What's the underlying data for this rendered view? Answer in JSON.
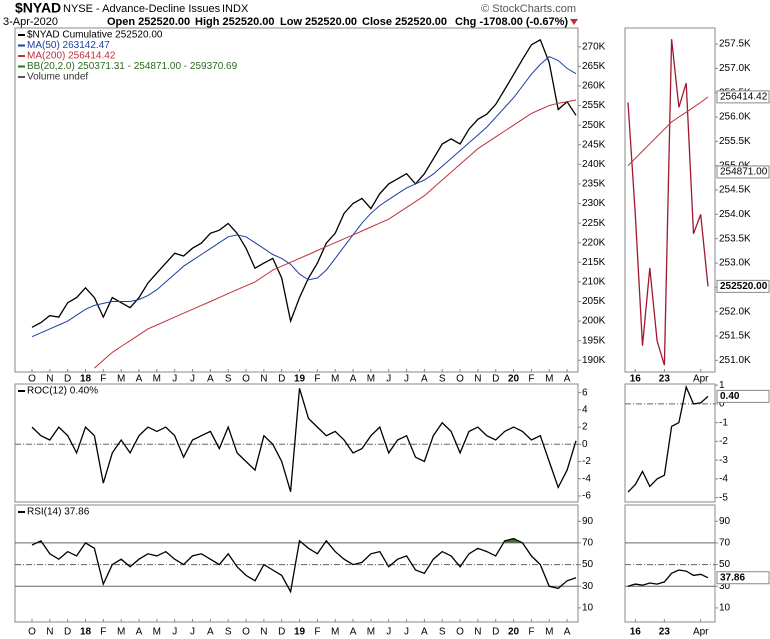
{
  "header": {
    "symbol": "$NYAD",
    "name": "NYSE - Advance-Decline Issues",
    "exchange": "INDX",
    "credit": "© StockCharts.com",
    "date": "3-Apr-2020",
    "open": "Open 252520.00",
    "high": "High 252520.00",
    "low": "Low 252520.00",
    "close": "Close 252520.00",
    "change": "Chg -1708.00 (-0.67%)"
  },
  "chart_data": [
    {
      "type": "line",
      "legend": "top-left",
      "legend_extra": [
        "BB(20,2.0) 250371.31 - 254871.00 - 259370.69",
        "Volume undef"
      ],
      "categories": [
        "O",
        null,
        "N",
        null,
        "D",
        null,
        "18",
        null,
        "F",
        null,
        "M",
        null,
        "A",
        null,
        "M",
        null,
        "J",
        null,
        "J",
        null,
        "A",
        null,
        "S",
        null,
        "O",
        null,
        "N",
        null,
        "D",
        null,
        "19",
        null,
        "F",
        null,
        "M",
        null,
        "A",
        null,
        "M",
        null,
        "J",
        null,
        "J",
        null,
        "A",
        null,
        "S",
        null,
        "O",
        null,
        "N",
        null,
        "D",
        null,
        "20",
        null,
        "F",
        null,
        "M",
        null,
        "A",
        null
      ],
      "ylim": [
        187000,
        274800
      ],
      "yticks": [
        {
          "value": 190000,
          "label": "190K"
        },
        {
          "value": 195000,
          "label": "195K"
        },
        {
          "value": 200000,
          "label": "200K"
        },
        {
          "value": 205000,
          "label": "205K"
        },
        {
          "value": 210000,
          "label": "210K"
        },
        {
          "value": 215000,
          "label": "215K"
        },
        {
          "value": 220000,
          "label": "220K"
        },
        {
          "value": 225000,
          "label": "225K"
        },
        {
          "value": 230000,
          "label": "230K"
        },
        {
          "value": 235000,
          "label": "235K"
        },
        {
          "value": 240000,
          "label": "240K"
        },
        {
          "value": 245000,
          "label": "245K"
        },
        {
          "value": 250000,
          "label": "250K"
        },
        {
          "value": 255000,
          "label": "255K"
        },
        {
          "value": 260000,
          "label": "260K"
        },
        {
          "value": 265000,
          "label": "265K"
        },
        {
          "value": 270000,
          "label": "270K"
        }
      ],
      "series": [
        {
          "name": "$NYAD Cumulative 252520.00",
          "color": "#000000",
          "values": [
            198400,
            199600,
            201400,
            201000,
            204700,
            206000,
            208500,
            206000,
            201000,
            206000,
            204700,
            203400,
            206000,
            209700,
            212300,
            214800,
            217300,
            216600,
            218600,
            219900,
            222400,
            223200,
            224900,
            222400,
            218600,
            213500,
            214800,
            216000,
            211000,
            200000,
            206000,
            211000,
            214800,
            219900,
            222400,
            227500,
            230000,
            231300,
            228700,
            232500,
            235000,
            236300,
            237600,
            235000,
            237600,
            241400,
            245200,
            246500,
            245200,
            249000,
            251500,
            252800,
            255300,
            259100,
            262900,
            266800,
            270500,
            271800,
            266000,
            254000,
            256000,
            252520
          ]
        },
        {
          "name": "MA(50) 263142.47",
          "color": "#1f3f9f",
          "values": [
            196000,
            197000,
            198000,
            199000,
            200000,
            201500,
            203000,
            204000,
            204500,
            205000,
            205000,
            205000,
            205500,
            206500,
            208000,
            210000,
            212000,
            214000,
            215500,
            217000,
            218500,
            220000,
            221500,
            222000,
            221500,
            220000,
            218500,
            217000,
            216000,
            214500,
            212000,
            210500,
            211000,
            213000,
            216000,
            219000,
            222000,
            225000,
            227500,
            229500,
            231000,
            232500,
            234000,
            235000,
            236000,
            237500,
            239500,
            241500,
            243500,
            245500,
            247500,
            249500,
            252000,
            254500,
            257000,
            260000,
            263000,
            265500,
            267500,
            266500,
            264500,
            263142.47
          ]
        },
        {
          "name": "MA(200) 256414.42",
          "color": "#c0303a",
          "values": [
            null,
            null,
            null,
            null,
            null,
            null,
            null,
            188000,
            190000,
            192000,
            193500,
            195000,
            196500,
            198000,
            199000,
            200000,
            201000,
            202000,
            203000,
            204000,
            205000,
            206000,
            207000,
            208000,
            209000,
            210000,
            211500,
            213000,
            214000,
            215000,
            216000,
            217000,
            218000,
            219000,
            220000,
            221000,
            222000,
            223000,
            224000,
            225000,
            226000,
            227500,
            229000,
            230500,
            232000,
            234000,
            236000,
            238000,
            240000,
            242000,
            244000,
            245500,
            247000,
            248500,
            250000,
            251500,
            253000,
            254000,
            255000,
            255600,
            256000,
            256414.42
          ]
        }
      ]
    },
    {
      "type": "line",
      "legend": "top-left",
      "ylim": [
        -6.7,
        7
      ],
      "yticks": [
        -6,
        -4,
        -2,
        0,
        2,
        4,
        6
      ],
      "levels": [
        0
      ],
      "level_styles": [
        "dashdot"
      ],
      "series": [
        {
          "name": "ROC(12) 0.40%",
          "color": "#000000",
          "values": [
            2,
            1,
            0.5,
            2,
            1,
            -1,
            2,
            1,
            -4.5,
            -1,
            0.5,
            -1,
            1,
            2,
            1.5,
            2,
            1,
            -1.5,
            0.5,
            1,
            1.5,
            -0.5,
            2,
            -1,
            -2,
            -3,
            1,
            0,
            -2,
            -5.5,
            6.5,
            3,
            2,
            1,
            1.5,
            0.5,
            -1,
            -0.5,
            1,
            2,
            -1,
            0.5,
            1,
            -1.5,
            -2,
            1,
            2.5,
            1.5,
            -1,
            1.5,
            2,
            1,
            0.5,
            1.5,
            2,
            1.5,
            0.5,
            1,
            -2,
            -5,
            -3,
            0.4
          ]
        }
      ]
    },
    {
      "type": "line",
      "legend": "top-left",
      "fill_above_level": true,
      "fill_color": "#4f6b45",
      "categories": [
        "O",
        null,
        "N",
        null,
        "D",
        null,
        "18",
        null,
        "F",
        null,
        "M",
        null,
        "A",
        null,
        "M",
        null,
        "J",
        null,
        "J",
        null,
        "A",
        null,
        "S",
        null,
        "O",
        null,
        "N",
        null,
        "D",
        null,
        "19",
        null,
        "F",
        null,
        "M",
        null,
        "A",
        null,
        "M",
        null,
        "J",
        null,
        "J",
        null,
        "A",
        null,
        "S",
        null,
        "O",
        null,
        "N",
        null,
        "D",
        null,
        "20",
        null,
        "F",
        null,
        "M",
        null,
        "A",
        null
      ],
      "ylim": [
        -3,
        105
      ],
      "yticks": [
        10,
        30,
        50,
        70,
        90
      ],
      "levels": [
        70,
        50,
        30
      ],
      "level_styles": [
        "solid",
        "dashdot",
        "solid"
      ],
      "series": [
        {
          "name": "RSI(14) 37.86",
          "color": "#000000",
          "values": [
            68,
            72,
            60,
            55,
            62,
            58,
            70,
            65,
            32,
            50,
            55,
            48,
            55,
            60,
            58,
            62,
            55,
            50,
            58,
            60,
            55,
            50,
            60,
            48,
            40,
            35,
            50,
            45,
            40,
            25,
            72,
            65,
            60,
            72,
            62,
            55,
            50,
            52,
            60,
            62,
            48,
            55,
            58,
            45,
            42,
            55,
            62,
            58,
            48,
            60,
            65,
            62,
            58,
            72,
            74,
            70,
            58,
            50,
            30,
            28,
            35,
            37.86
          ]
        }
      ]
    },
    {
      "type": "line",
      "categories": [
        null,
        "16",
        null,
        null,
        null,
        "23",
        null,
        null,
        null,
        null,
        "Apr",
        null
      ],
      "ylim": [
        250760,
        257830
      ],
      "yticks": [
        {
          "value": 251000,
          "label": "251.0K"
        },
        {
          "value": 251500,
          "label": "251.5K"
        },
        {
          "value": 252000,
          "label": "252.0K"
        },
        {
          "value": 252500,
          "label": "252.5K"
        },
        {
          "value": 253000,
          "label": "253.0K"
        },
        {
          "value": 253500,
          "label": "253.5K"
        },
        {
          "value": 254000,
          "label": "254.0K"
        },
        {
          "value": 254500,
          "label": "254.5K"
        },
        {
          "value": 255000,
          "label": "255.0K"
        },
        {
          "value": 255500,
          "label": "255.5K"
        },
        {
          "value": 256000,
          "label": "256.0K"
        },
        {
          "value": 256500,
          "label": "256.5K"
        },
        {
          "value": 257000,
          "label": "257.0K"
        },
        {
          "value": 257500,
          "label": "257.5K"
        }
      ],
      "markers": [
        {
          "value": 256414.42,
          "label": "256414.42"
        },
        {
          "value": 254871,
          "label": "254871.00"
        },
        {
          "value": 252520,
          "label": "252520.00"
        }
      ],
      "series": [
        {
          "color": "#a0182e",
          "values": [
            256300,
            254000,
            251300,
            252900,
            251400,
            250900,
            257600,
            256200,
            256700,
            253600,
            254000,
            252520
          ]
        },
        {
          "color": "#c0303a",
          "values": [
            255000,
            255150,
            255300,
            255450,
            255600,
            255750,
            255900,
            256000,
            256100,
            256200,
            256300,
            256414.42
          ]
        }
      ]
    },
    {
      "type": "line",
      "ylim": [
        -5.23,
        1.06
      ],
      "yticks": [
        -5,
        -4,
        -3,
        -2,
        -1,
        0,
        1
      ],
      "levels": [
        0
      ],
      "level_styles": [
        "dashdot"
      ],
      "markers": [
        {
          "value": 0.4,
          "label": "0.40"
        }
      ],
      "series": [
        {
          "color": "#000000",
          "values": [
            -4.7,
            -4.3,
            -3.6,
            -4.4,
            -4.0,
            -3.8,
            -1.2,
            -1.0,
            0.9,
            0.0,
            0.05,
            0.4
          ]
        }
      ]
    },
    {
      "type": "line",
      "categories": [
        null,
        "16",
        null,
        null,
        null,
        "23",
        null,
        null,
        null,
        null,
        "Apr",
        null
      ],
      "ylim": [
        -3,
        105
      ],
      "yticks": [
        10,
        30,
        50,
        70,
        90
      ],
      "levels": [
        70,
        50,
        30
      ],
      "level_styles": [
        "solid",
        "dashdot",
        "solid"
      ],
      "markers": [
        37.86
      ],
      "series": [
        {
          "color": "#000000",
          "values": [
            30,
            32,
            31,
            33,
            32,
            34,
            42,
            45,
            44,
            40,
            41,
            37.86
          ]
        }
      ]
    }
  ]
}
